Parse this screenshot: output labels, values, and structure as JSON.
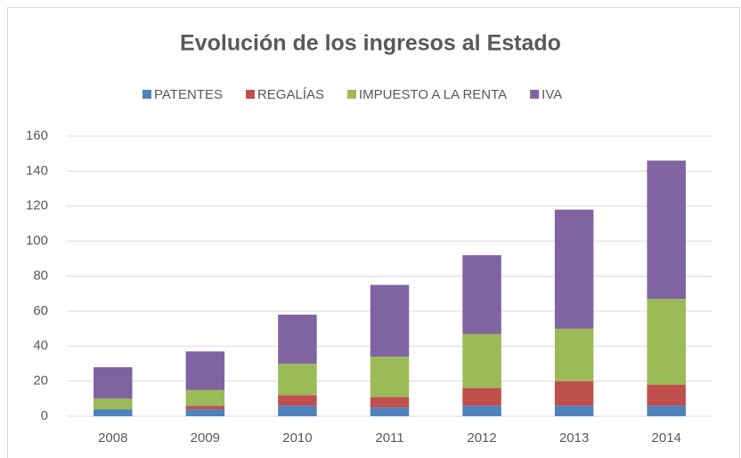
{
  "chart_data": {
    "type": "bar",
    "stacked": true,
    "title": "Evolución de los ingresos al Estado",
    "categories": [
      "2008",
      "2009",
      "2010",
      "2011",
      "2012",
      "2013",
      "2014"
    ],
    "series": [
      {
        "name": "PATENTES",
        "color": "#4f81bd",
        "values": [
          4,
          4,
          6,
          5,
          6,
          6,
          6
        ]
      },
      {
        "name": "REGALÍAS",
        "color": "#c0504d",
        "values": [
          0,
          2,
          6,
          6,
          10,
          14,
          12
        ]
      },
      {
        "name": "IMPUESTO A LA RENTA",
        "color": "#9bbb59",
        "values": [
          6,
          9,
          18,
          23,
          31,
          30,
          49
        ]
      },
      {
        "name": "IVA",
        "color": "#8064a2",
        "values": [
          18,
          22,
          28,
          41,
          45,
          68,
          79
        ]
      }
    ],
    "ylim": [
      0,
      160
    ],
    "yticks": [
      0,
      20,
      40,
      60,
      80,
      100,
      120,
      140,
      160
    ],
    "grid": true,
    "legend": "top"
  }
}
